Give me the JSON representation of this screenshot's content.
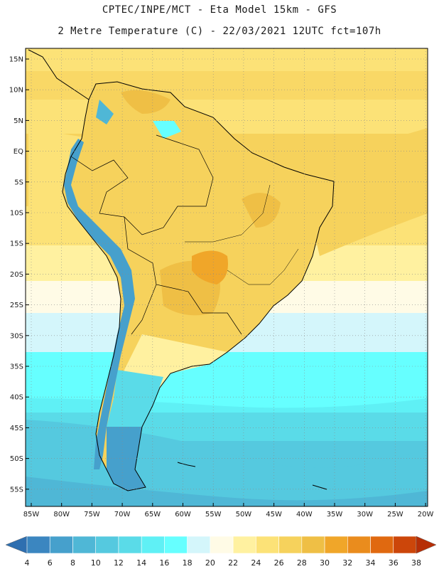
{
  "header": {
    "title_line1": "CPTEC/INPE/MCT -  Eta Model 15km - GFS",
    "title_line2": "2 Metre Temperature (C) - 22/03/2021 12UTC fct=107h"
  },
  "map": {
    "lat_labels": [
      "15N",
      "10N",
      "5N",
      "EQ",
      "5S",
      "10S",
      "15S",
      "20S",
      "25S",
      "30S",
      "35S",
      "40S",
      "45S",
      "50S",
      "55S"
    ],
    "lon_labels": [
      "85W",
      "80W",
      "75W",
      "70W",
      "65W",
      "60W",
      "55W",
      "50W",
      "45W",
      "40W",
      "35W",
      "30W",
      "25W",
      "20W"
    ]
  },
  "colorbar": {
    "ticks": [
      "4",
      "6",
      "8",
      "10",
      "12",
      "14",
      "16",
      "18",
      "20",
      "22",
      "24",
      "26",
      "28",
      "30",
      "32",
      "34",
      "36",
      "38"
    ],
    "colors": [
      "#2e6fb0",
      "#3b86c0",
      "#46a0cc",
      "#4fb7d6",
      "#55c9df",
      "#5adbe8",
      "#5ff0f5",
      "#66ffff",
      "#d4f6fb",
      "#fffbe6",
      "#fff1a0",
      "#fce277",
      "#f6d25c",
      "#efbf45",
      "#f0a629",
      "#ea8c1d",
      "#e06910",
      "#cc460a",
      "#b62e06"
    ]
  }
}
